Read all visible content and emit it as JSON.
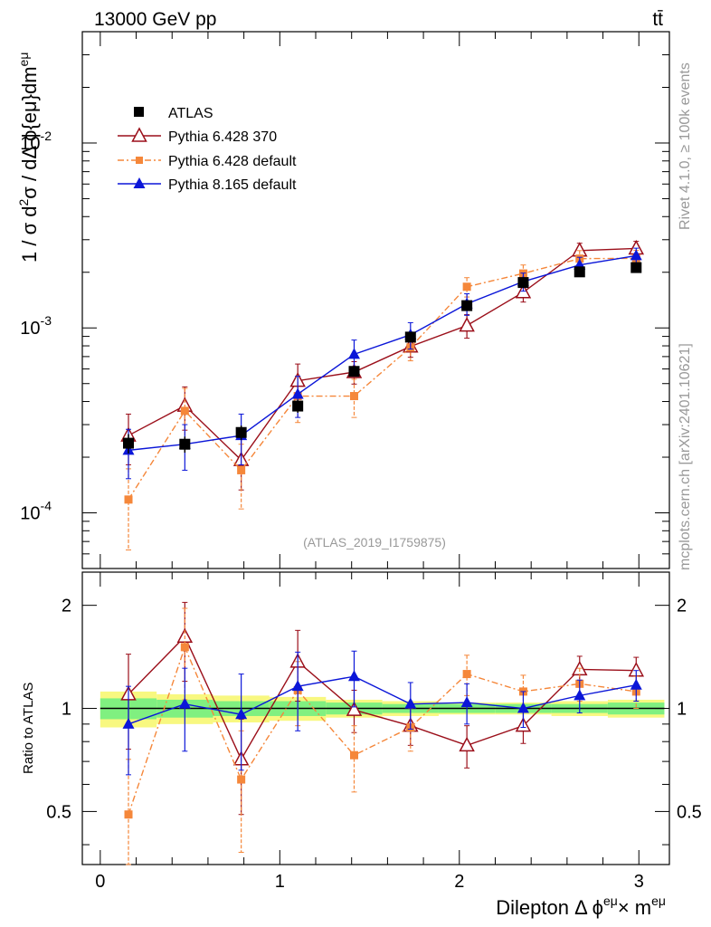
{
  "header": {
    "energy_label": "13000 GeV pp",
    "process_label": "tt̄",
    "rivet_label": "Rivet 4.1.0, ≥ 100k events",
    "mcplots_label": "mcplots.cern.ch [arXiv:2401.10621]",
    "analysis_label": "(ATLAS_2019_I1759875)"
  },
  "axes": {
    "main_ylabel": "1 / σ  d²σ / dΔ ϕ{eμ}dm^{eμ}",
    "ratio_ylabel": "Ratio to ATLAS",
    "xlabel": "Dilepton Δ ϕ^{eμ} × m^{eμ}",
    "x_ticks": [
      "0",
      "1",
      "2",
      "3"
    ],
    "main_y_ticks": [
      "10^{-4}",
      "10^{-3}",
      "10^{-2}"
    ],
    "ratio_y_ticks": [
      "0.5",
      "1",
      "2"
    ]
  },
  "colors": {
    "atlas": "#000000",
    "pythia6_370": "#9b0f1a",
    "pythia6_default": "#f5873a",
    "pythia8": "#0b16d8",
    "band_inner": "#80f080",
    "band_outer": "#f8f880"
  },
  "chart_data": {
    "type": "scatter",
    "xlim": [
      -0.1,
      3.17
    ],
    "main_ylim": [
      5e-05,
      0.04
    ],
    "ratio_ylim": [
      0.35,
      2.5
    ],
    "bin_edges": [
      0,
      0.314,
      0.628,
      0.942,
      1.257,
      1.571,
      1.885,
      2.199,
      2.513,
      2.827,
      3.142
    ],
    "x": [
      0.157,
      0.471,
      0.785,
      1.1,
      1.414,
      1.728,
      2.042,
      2.356,
      2.67,
      2.985
    ],
    "atlas": {
      "name": "ATLAS",
      "values": [
        0.000238,
        0.000235,
        0.000272,
        0.000378,
        0.000582,
        0.000892,
        0.00132,
        0.00176,
        0.00201,
        0.00212
      ],
      "rel_err_inner": [
        0.07,
        0.06,
        0.05,
        0.05,
        0.04,
        0.03,
        0.03,
        0.03,
        0.03,
        0.04
      ],
      "rel_err_outer": [
        0.12,
        0.1,
        0.09,
        0.08,
        0.06,
        0.05,
        0.04,
        0.04,
        0.05,
        0.06
      ]
    },
    "series": [
      {
        "name": "Pythia 6.428 370",
        "values": [
          0.000262,
          0.00038,
          0.000193,
          0.000518,
          0.000577,
          0.000794,
          0.00103,
          0.00156,
          0.00262,
          0.00269
        ],
        "errors": [
          8e-05,
          0.0001,
          6e-05,
          0.00012,
          8e-05,
          0.0001,
          0.00015,
          0.00018,
          0.00025,
          0.00025
        ],
        "ratio": [
          1.1,
          1.62,
          0.71,
          1.37,
          0.99,
          0.89,
          0.78,
          0.89,
          1.3,
          1.29
        ],
        "ratio_err": [
          0.34,
          0.42,
          0.22,
          0.32,
          0.14,
          0.11,
          0.11,
          0.1,
          0.12,
          0.12
        ]
      },
      {
        "name": "Pythia 6.428 default",
        "values": [
          0.000118,
          0.000356,
          0.00017,
          0.000428,
          0.000428,
          0.000784,
          0.00167,
          0.00197,
          0.00237,
          0.00238
        ],
        "errors": [
          5.5e-05,
          0.000115,
          6.5e-05,
          0.00012,
          0.0001,
          0.00012,
          0.0002,
          0.00022,
          0.00025,
          0.00025
        ],
        "ratio": [
          0.49,
          1.51,
          0.62,
          1.13,
          0.73,
          0.88,
          1.26,
          1.12,
          1.18,
          1.12
        ],
        "ratio_err": [
          0.22,
          0.45,
          0.24,
          0.24,
          0.16,
          0.13,
          0.17,
          0.13,
          0.13,
          0.12
        ]
      },
      {
        "name": "Pythia 8.165 default",
        "values": [
          0.000218,
          0.000235,
          0.000262,
          0.000438,
          0.00072,
          0.000918,
          0.00135,
          0.00178,
          0.00219,
          0.00246
        ],
        "errors": [
          6.5e-05,
          6.5e-05,
          8e-05,
          0.00011,
          0.00014,
          0.00015,
          0.00018,
          0.0002,
          0.00022,
          0.00024
        ],
        "ratio": [
          0.9,
          1.03,
          0.96,
          1.16,
          1.24,
          1.03,
          1.04,
          1.0,
          1.09,
          1.17
        ],
        "ratio_err": [
          0.26,
          0.28,
          0.3,
          0.3,
          0.23,
          0.16,
          0.14,
          0.12,
          0.12,
          0.12
        ]
      }
    ]
  }
}
